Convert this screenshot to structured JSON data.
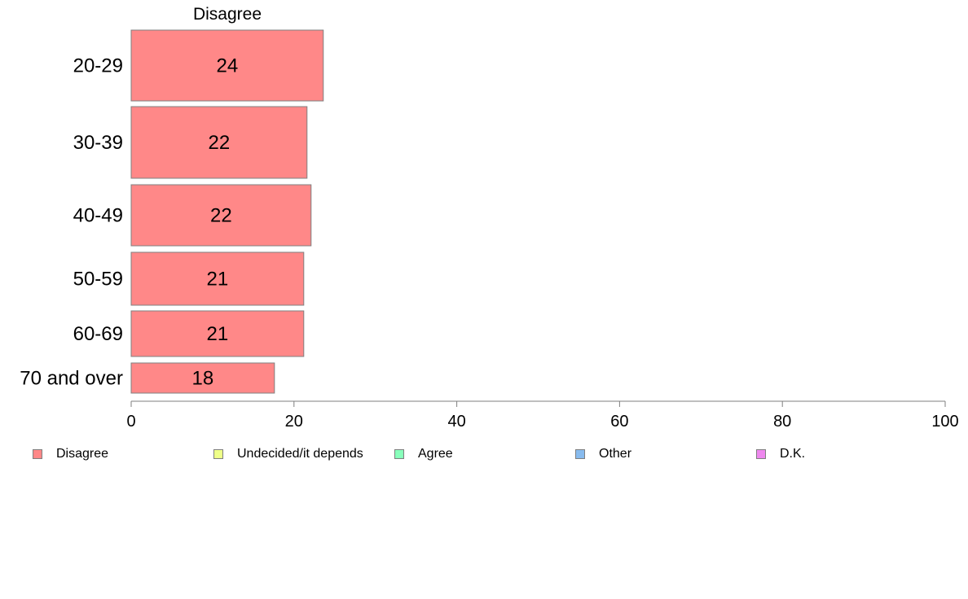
{
  "chart_data": {
    "type": "bar",
    "orientation": "horizontal",
    "panel_title": "Disagree",
    "categories": [
      "20-29",
      "30-39",
      "40-49",
      "50-59",
      "60-69",
      "70 and over"
    ],
    "series": [
      {
        "name": "Disagree",
        "values": [
          23.6,
          21.6,
          22.1,
          21.2,
          21.2,
          17.6
        ],
        "labels": [
          "24",
          "22",
          "22",
          "21",
          "21",
          "18"
        ]
      }
    ],
    "xlim": [
      0,
      100
    ],
    "xticks": [
      0,
      20,
      40,
      60,
      80,
      100
    ],
    "grid": false,
    "legend": {
      "position": "bottom",
      "entries": [
        {
          "label": "Disagree",
          "color": "#ff8888"
        },
        {
          "label": "Undecided/it depends",
          "color": "#eeff88"
        },
        {
          "label": "Agree",
          "color": "#88ffbb"
        },
        {
          "label": "Other",
          "color": "#88bbee"
        },
        {
          "label": "D.K.",
          "color": "#ee88ee"
        }
      ]
    },
    "bar_color": "#ff8888",
    "bar_outline": "#7f7f7f"
  }
}
